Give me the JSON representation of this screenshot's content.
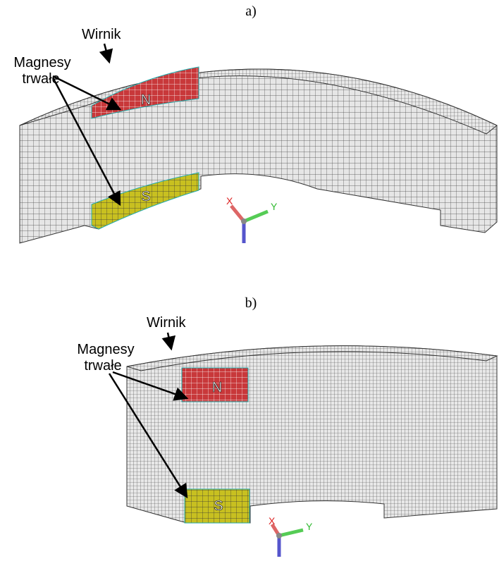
{
  "panels": [
    {
      "label": "a)",
      "rotor_label": "Wirnik",
      "magnets_label": [
        "Magnesy",
        "trwałe"
      ],
      "north": "N",
      "south": "S",
      "axes": [
        "X",
        "Y"
      ]
    },
    {
      "label": "b)",
      "rotor_label": "Wirnik",
      "magnets_label": [
        "Magnesy",
        "trwałe"
      ],
      "north": "N",
      "south": "S",
      "axes": [
        "X",
        "Y"
      ]
    }
  ]
}
